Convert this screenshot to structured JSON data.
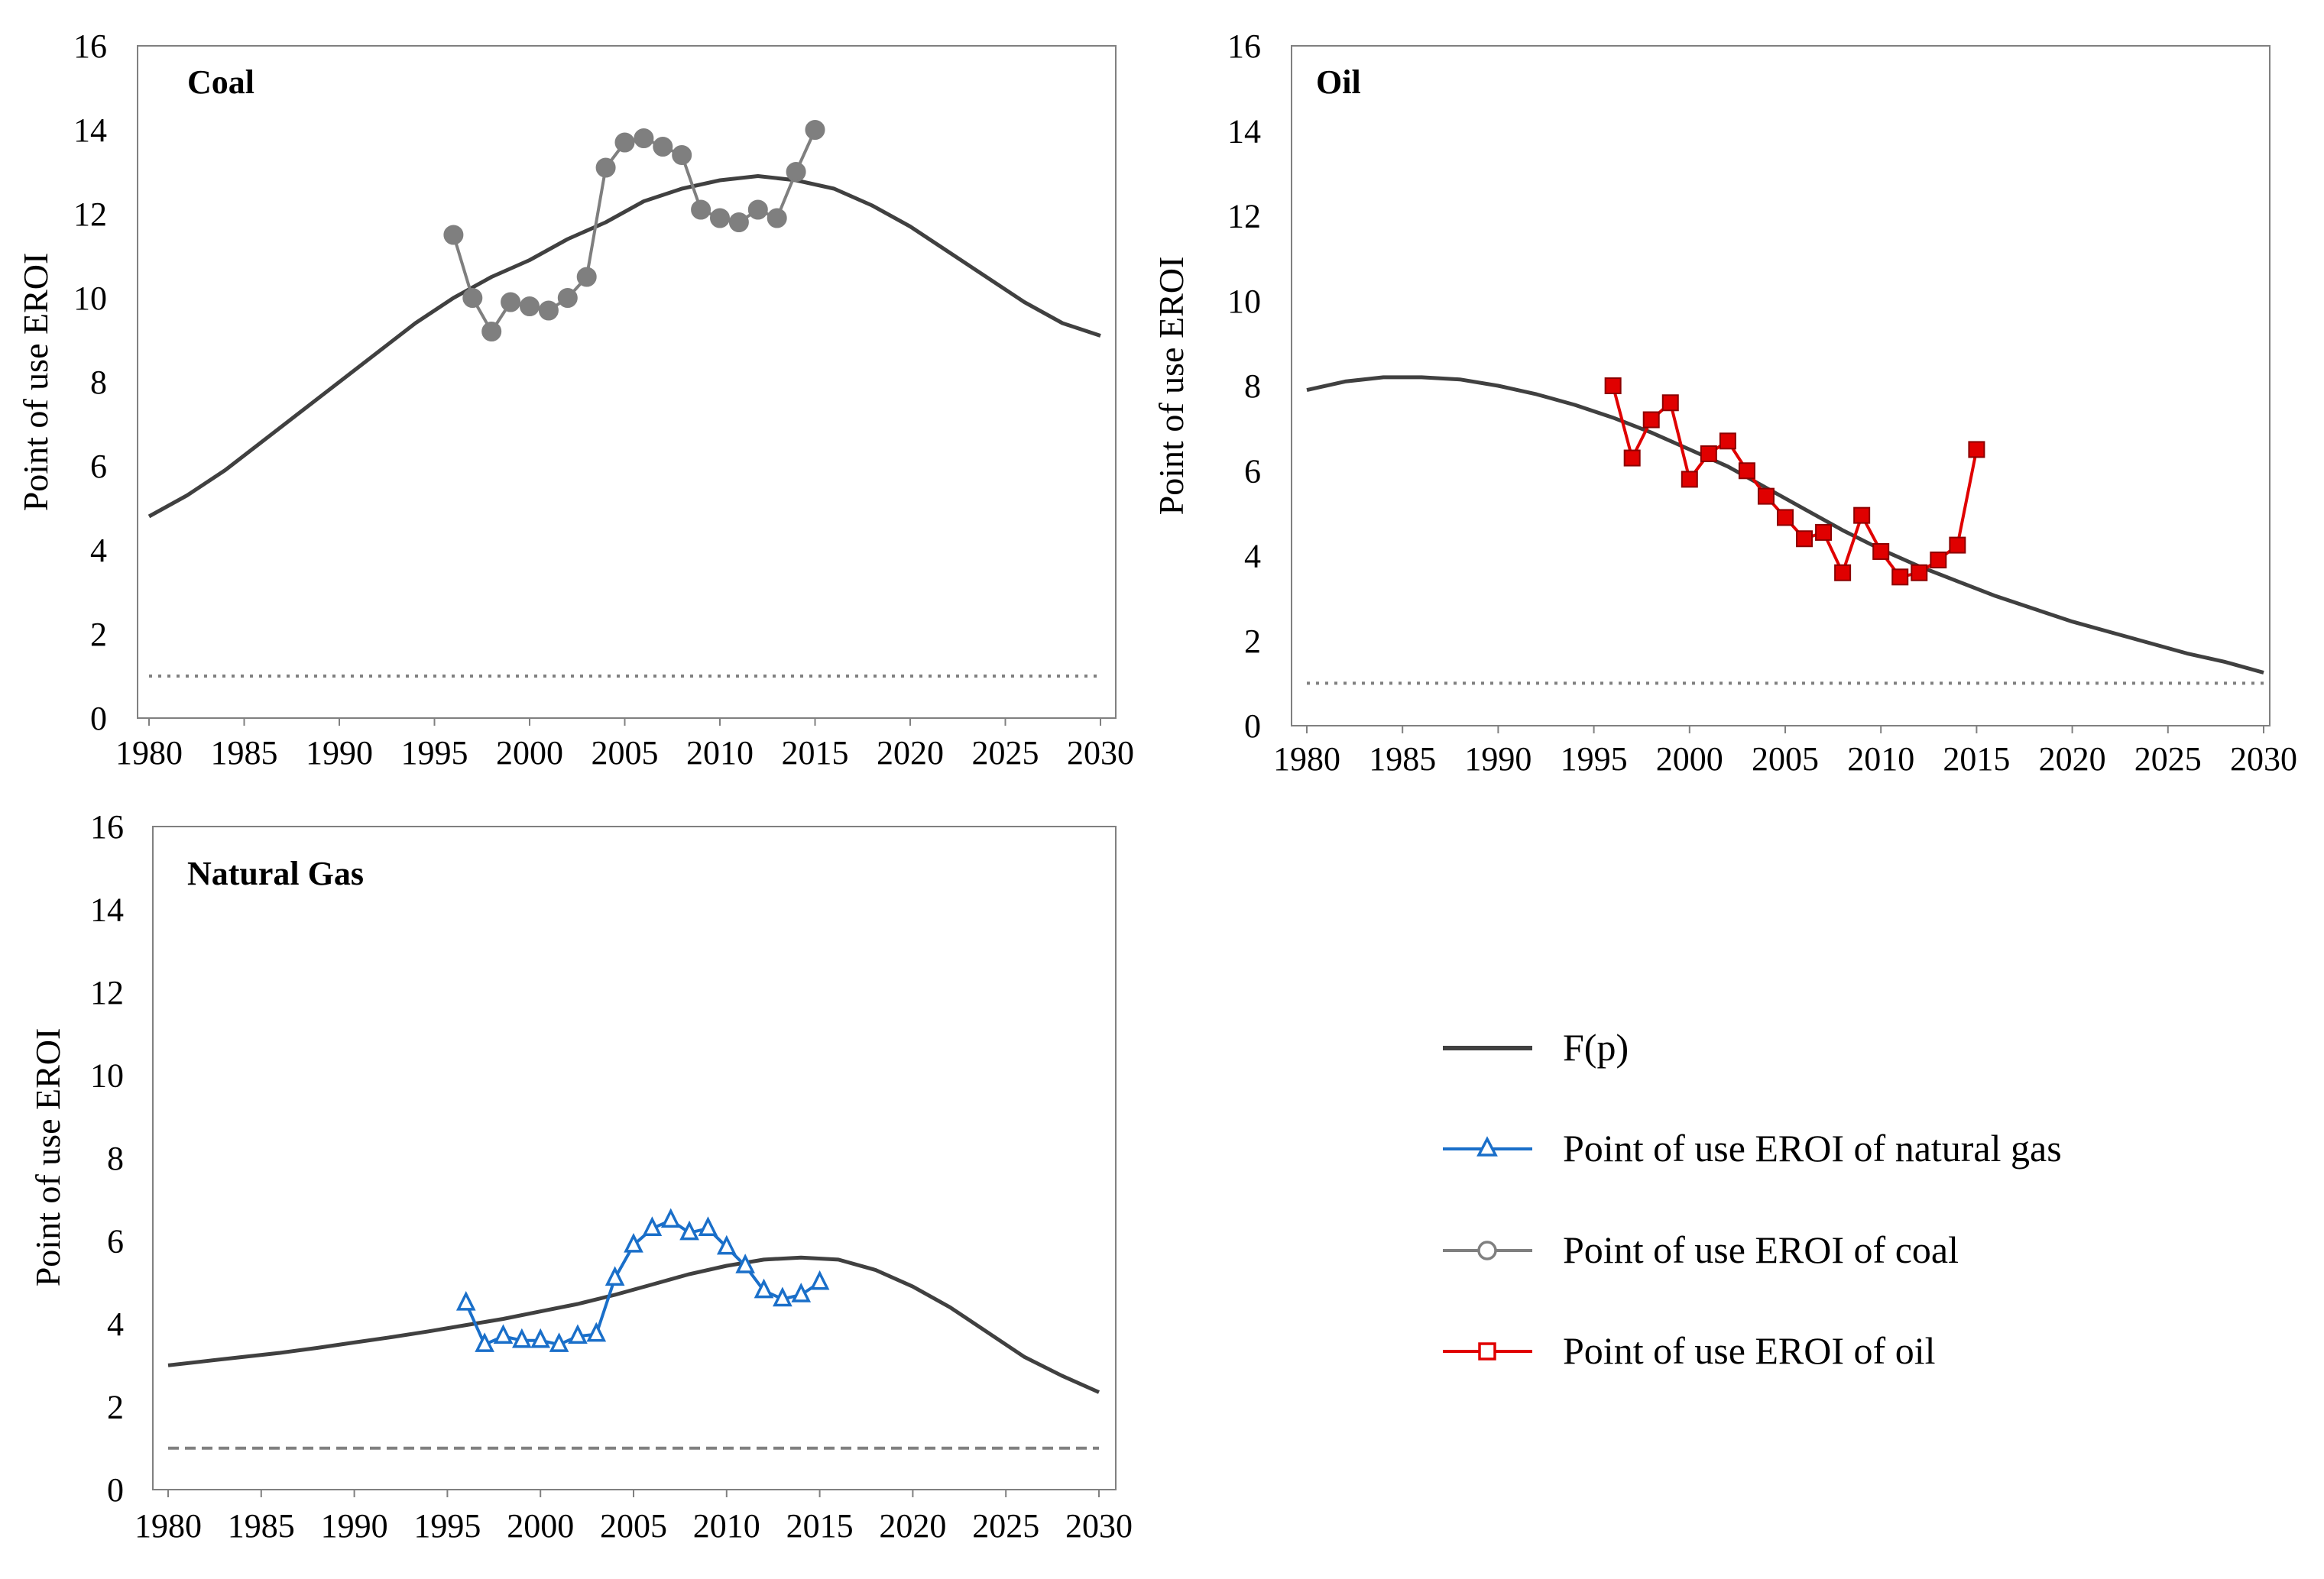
{
  "chart_data": [
    {
      "type": "line",
      "title": "Coal",
      "xlabel": "",
      "ylabel": "Point of use EROI",
      "xlim": [
        1980,
        2030
      ],
      "ylim": [
        0,
        16
      ],
      "x_ticks": [
        "1980",
        "1985",
        "1990",
        "1995",
        "2000",
        "2005",
        "2010",
        "2015",
        "2020",
        "2025",
        "2030"
      ],
      "y_ticks": [
        "0",
        "2",
        "4",
        "6",
        "8",
        "10",
        "12",
        "14",
        "16"
      ],
      "grid": false,
      "reference_line": {
        "y": 1,
        "style": "dotted",
        "color": "#808080"
      },
      "series": [
        {
          "name": "F(p)",
          "color": "#404040",
          "marker": "none",
          "x": [
            1980,
            1982,
            1984,
            1986,
            1988,
            1990,
            1992,
            1994,
            1996,
            1998,
            2000,
            2002,
            2004,
            2006,
            2008,
            2010,
            2012,
            2014,
            2016,
            2018,
            2020,
            2022,
            2024,
            2026,
            2028,
            2030
          ],
          "y": [
            4.8,
            5.3,
            5.9,
            6.6,
            7.3,
            8.0,
            8.7,
            9.4,
            10.0,
            10.5,
            10.9,
            11.4,
            11.8,
            12.3,
            12.6,
            12.8,
            12.9,
            12.8,
            12.6,
            12.2,
            11.7,
            11.1,
            10.5,
            9.9,
            9.4,
            9.1
          ]
        },
        {
          "name": "Point of use EROI of coal",
          "color": "#7f7f7f",
          "marker": "circle",
          "x": [
            1996,
            1997,
            1998,
            1999,
            2000,
            2001,
            2002,
            2003,
            2004,
            2005,
            2006,
            2007,
            2008,
            2009,
            2010,
            2011,
            2012,
            2013,
            2014,
            2015
          ],
          "y": [
            11.5,
            10.0,
            9.2,
            9.9,
            9.8,
            9.7,
            10.0,
            10.5,
            13.1,
            13.7,
            13.8,
            13.6,
            13.4,
            12.1,
            11.9,
            11.8,
            12.1,
            11.9,
            13.0,
            14.0
          ]
        }
      ]
    },
    {
      "type": "line",
      "title": "Oil",
      "xlabel": "",
      "ylabel": "Point of use EROI",
      "xlim": [
        1980,
        2030
      ],
      "ylim": [
        0,
        16
      ],
      "x_ticks": [
        "1980",
        "1985",
        "1990",
        "1995",
        "2000",
        "2005",
        "2010",
        "2015",
        "2020",
        "2025",
        "2030"
      ],
      "y_ticks": [
        "0",
        "2",
        "4",
        "6",
        "8",
        "10",
        "12",
        "14",
        "16"
      ],
      "grid": false,
      "reference_line": {
        "y": 1,
        "style": "dotted",
        "color": "#808080"
      },
      "series": [
        {
          "name": "F(p)",
          "color": "#404040",
          "marker": "none",
          "x": [
            1980,
            1982,
            1984,
            1986,
            1988,
            1990,
            1992,
            1994,
            1996,
            1998,
            2000,
            2002,
            2004,
            2006,
            2008,
            2010,
            2012,
            2014,
            2016,
            2018,
            2020,
            2022,
            2024,
            2026,
            2028,
            2030
          ],
          "y": [
            7.9,
            8.1,
            8.2,
            8.2,
            8.15,
            8.0,
            7.8,
            7.55,
            7.25,
            6.9,
            6.5,
            6.1,
            5.6,
            5.1,
            4.6,
            4.15,
            3.75,
            3.4,
            3.05,
            2.75,
            2.45,
            2.2,
            1.95,
            1.7,
            1.5,
            1.25
          ]
        },
        {
          "name": "Point of use EROI of oil",
          "color": "#e00000",
          "marker": "square",
          "x": [
            1996,
            1997,
            1998,
            1999,
            2000,
            2001,
            2002,
            2003,
            2004,
            2005,
            2006,
            2007,
            2008,
            2009,
            2010,
            2011,
            2012,
            2013,
            2014,
            2015
          ],
          "y": [
            8.0,
            6.3,
            7.2,
            7.6,
            5.8,
            6.4,
            6.7,
            6.0,
            5.4,
            4.9,
            4.4,
            4.55,
            3.6,
            4.95,
            4.1,
            3.5,
            3.6,
            3.9,
            4.25,
            6.5
          ]
        }
      ]
    },
    {
      "type": "line",
      "title": "Natural Gas",
      "xlabel": "",
      "ylabel": "Point of use EROI",
      "xlim": [
        1980,
        2030
      ],
      "ylim": [
        0,
        16
      ],
      "x_ticks": [
        "1980",
        "1985",
        "1990",
        "1995",
        "2000",
        "2005",
        "2010",
        "2015",
        "2020",
        "2025",
        "2030"
      ],
      "y_ticks": [
        "0",
        "2",
        "4",
        "6",
        "8",
        "10",
        "12",
        "14",
        "16"
      ],
      "grid": false,
      "reference_line": {
        "y": 1,
        "style": "dashed",
        "color": "#808080"
      },
      "series": [
        {
          "name": "F(p)",
          "color": "#404040",
          "marker": "none",
          "x": [
            1980,
            1982,
            1984,
            1986,
            1988,
            1990,
            1992,
            1994,
            1996,
            1998,
            2000,
            2002,
            2004,
            2006,
            2008,
            2010,
            2012,
            2014,
            2016,
            2018,
            2020,
            2022,
            2024,
            2026,
            2028,
            2030
          ],
          "y": [
            3.0,
            3.1,
            3.2,
            3.3,
            3.42,
            3.55,
            3.68,
            3.82,
            3.97,
            4.12,
            4.3,
            4.48,
            4.7,
            4.95,
            5.2,
            5.4,
            5.55,
            5.6,
            5.55,
            5.3,
            4.9,
            4.4,
            3.8,
            3.2,
            2.75,
            2.35
          ]
        },
        {
          "name": "Point of use EROI of natural gas",
          "color": "#1a6fc9",
          "marker": "triangle",
          "x": [
            1996,
            1997,
            1998,
            1999,
            2000,
            2001,
            2002,
            2003,
            2004,
            2005,
            2006,
            2007,
            2008,
            2009,
            2010,
            2011,
            2012,
            2013,
            2014,
            2015
          ],
          "y": [
            4.5,
            3.5,
            3.7,
            3.6,
            3.6,
            3.5,
            3.7,
            3.75,
            5.1,
            5.9,
            6.3,
            6.5,
            6.2,
            6.3,
            5.85,
            5.4,
            4.8,
            4.6,
            4.7,
            5.0
          ]
        }
      ]
    }
  ],
  "legend": {
    "placement": "lower-right",
    "entries": [
      {
        "label": "F(p)",
        "color": "#404040",
        "marker": "none"
      },
      {
        "label": "Point of use EROI of natural gas",
        "color": "#1a6fc9",
        "marker": "triangle"
      },
      {
        "label": "Point of use EROI of coal",
        "color": "#7f7f7f",
        "marker": "circle"
      },
      {
        "label": "Point of use EROI of oil",
        "color": "#e00000",
        "marker": "square"
      }
    ]
  }
}
